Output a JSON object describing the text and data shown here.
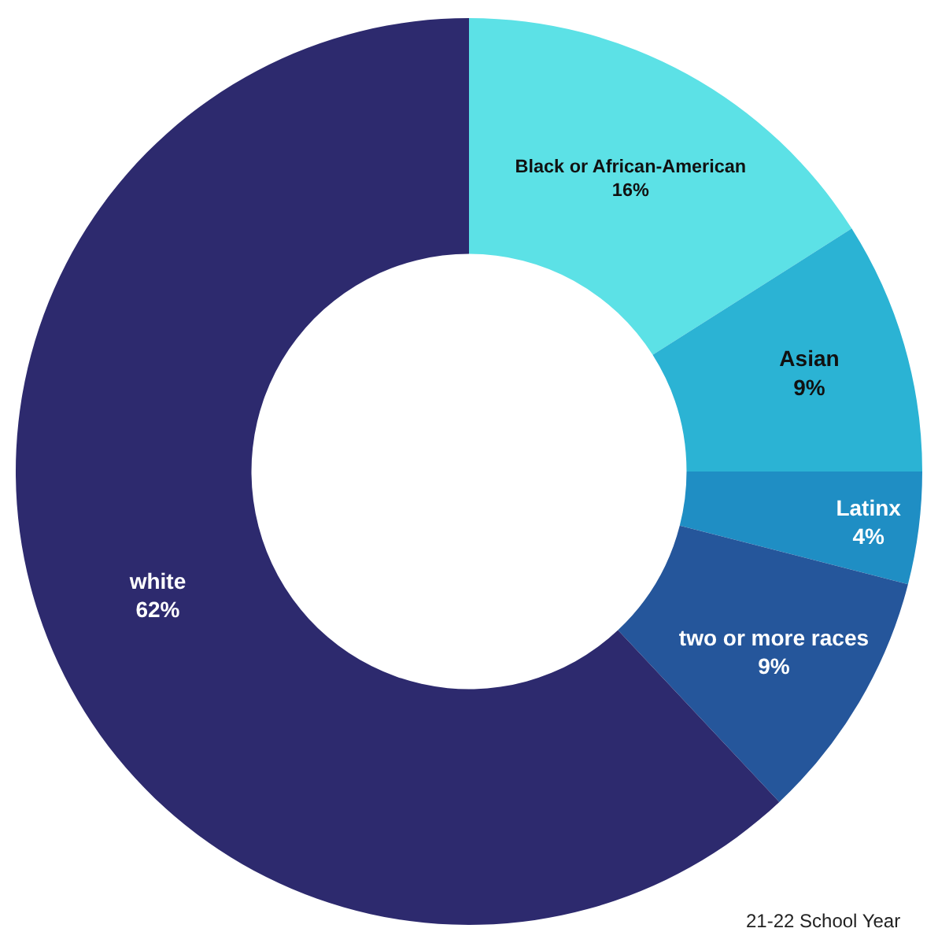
{
  "chart_data": {
    "type": "donut",
    "categories": [
      "Black or African-American",
      "Asian",
      "Latinx",
      "two or more races",
      "white"
    ],
    "values": [
      16,
      9,
      4,
      9,
      62
    ],
    "colors": [
      "#5ce1e6",
      "#2bb3d4",
      "#1f8ec4",
      "#25569b",
      "#2d2a6e"
    ],
    "value_labels": [
      "16%",
      "9%",
      "4%",
      "9%",
      "62%"
    ],
    "legend": false,
    "annotations": [
      "21-22 School Year"
    ]
  }
}
